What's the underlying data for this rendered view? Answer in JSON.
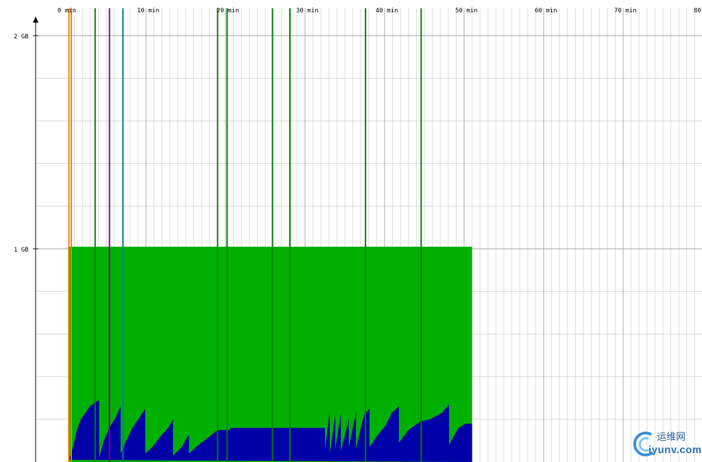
{
  "chart_data": {
    "type": "area",
    "title": "",
    "xlabel": "",
    "ylabel": "",
    "x_unit": "min",
    "y_unit": "GB",
    "x_range": [
      0,
      80
    ],
    "y_range": [
      0,
      2
    ],
    "grid": true,
    "x_ticks": [
      {
        "value": 0,
        "label": "0 min"
      },
      {
        "value": 10,
        "label": "10 min"
      },
      {
        "value": 20,
        "label": "20 min"
      },
      {
        "value": 30,
        "label": "30 min"
      },
      {
        "value": 40,
        "label": "40 min"
      },
      {
        "value": 50,
        "label": "50 min"
      },
      {
        "value": 60,
        "label": "60 min"
      },
      {
        "value": 70,
        "label": "70 min"
      },
      {
        "value": 80,
        "label": "80"
      }
    ],
    "y_ticks": [
      {
        "value": 2,
        "label": "2 GB"
      },
      {
        "value": 1,
        "label": "1 GB"
      }
    ],
    "series": [
      {
        "color": "#00b000",
        "points": [
          [
            0.2,
            0.0
          ],
          [
            0.2,
            1.01
          ],
          [
            51.0,
            1.01
          ],
          [
            51.0,
            0.0
          ]
        ]
      },
      {
        "color": "#0000a8",
        "points": [
          [
            0.2,
            0.01
          ],
          [
            0.5,
            0.03
          ],
          [
            0.9,
            0.08
          ],
          [
            1.3,
            0.15
          ],
          [
            1.8,
            0.2
          ],
          [
            2.4,
            0.23
          ],
          [
            2.9,
            0.26
          ],
          [
            3.6,
            0.28
          ],
          [
            4.1,
            0.29
          ],
          [
            4.1,
            0.02
          ],
          [
            4.7,
            0.1
          ],
          [
            5.4,
            0.16
          ],
          [
            6.2,
            0.21
          ],
          [
            6.8,
            0.26
          ],
          [
            6.8,
            0.04
          ],
          [
            7.5,
            0.1
          ],
          [
            8.3,
            0.16
          ],
          [
            9.2,
            0.21
          ],
          [
            9.9,
            0.25
          ],
          [
            9.9,
            0.04
          ],
          [
            10.8,
            0.07
          ],
          [
            11.8,
            0.12
          ],
          [
            12.8,
            0.16
          ],
          [
            13.4,
            0.2
          ],
          [
            13.4,
            0.03
          ],
          [
            14.5,
            0.07
          ],
          [
            15.4,
            0.13
          ],
          [
            15.4,
            0.04
          ],
          [
            16.6,
            0.08
          ],
          [
            18.0,
            0.12
          ],
          [
            19.0,
            0.15
          ],
          [
            20.6,
            0.15
          ],
          [
            20.6,
            0.16
          ],
          [
            26.0,
            0.16
          ],
          [
            32.5,
            0.16
          ],
          [
            32.5,
            0.06
          ],
          [
            33.1,
            0.24
          ],
          [
            33.1,
            0.04
          ],
          [
            33.8,
            0.22
          ],
          [
            33.8,
            0.06
          ],
          [
            34.5,
            0.23
          ],
          [
            34.5,
            0.05
          ],
          [
            35.5,
            0.2
          ],
          [
            35.5,
            0.07
          ],
          [
            36.4,
            0.23
          ],
          [
            36.4,
            0.06
          ],
          [
            37.4,
            0.22
          ],
          [
            38.1,
            0.25
          ],
          [
            38.1,
            0.07
          ],
          [
            39.0,
            0.12
          ],
          [
            40.1,
            0.17
          ],
          [
            40.9,
            0.23
          ],
          [
            41.8,
            0.26
          ],
          [
            41.8,
            0.09
          ],
          [
            43.0,
            0.15
          ],
          [
            44.5,
            0.19
          ],
          [
            45.7,
            0.2
          ],
          [
            47.2,
            0.23
          ],
          [
            48.1,
            0.27
          ],
          [
            48.1,
            0.08
          ],
          [
            49.3,
            0.16
          ],
          [
            50.2,
            0.18
          ],
          [
            51.0,
            0.18
          ],
          [
            51.0,
            0.0
          ]
        ]
      }
    ],
    "vertical_lines": [
      {
        "x": 0.3,
        "color": "#ff8000"
      },
      {
        "x": 0.6,
        "color": "#ff8000"
      },
      {
        "x": 3.6,
        "color": "#008000"
      },
      {
        "x": 5.4,
        "color": "#800080"
      },
      {
        "x": 7.1,
        "color": "#008080"
      },
      {
        "x": 19.0,
        "color": "#008000"
      },
      {
        "x": 20.2,
        "color": "#008000"
      },
      {
        "x": 25.9,
        "color": "#008000"
      },
      {
        "x": 28.1,
        "color": "#008000"
      },
      {
        "x": 37.6,
        "color": "#008000"
      },
      {
        "x": 44.6,
        "color": "#008000"
      }
    ]
  },
  "watermark": {
    "text_cn": "运维网",
    "text_url": "iyunv.com"
  }
}
